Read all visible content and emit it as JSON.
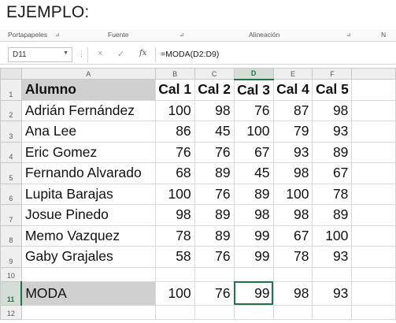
{
  "heading": "EJEMPLO:",
  "ribbon": {
    "groups": [
      "Portapapeles",
      "Fuente",
      "Alineación",
      "N"
    ]
  },
  "formula_bar": {
    "name_box": "D11",
    "cancel_icon": "×",
    "enter_icon": "✓",
    "fx_label": "fx",
    "formula": "=MODA(D2:D9)"
  },
  "columns": [
    "A",
    "B",
    "C",
    "D",
    "E",
    "F"
  ],
  "selected_column": "D",
  "rows": [
    "1",
    "2",
    "3",
    "4",
    "5",
    "6",
    "7",
    "8",
    "9",
    "10",
    "11",
    "12"
  ],
  "selected_row": "11",
  "header_row": [
    "Alumno",
    "Cal 1",
    "Cal 2",
    "Cal 3",
    "Cal 4",
    "Cal 5"
  ],
  "students": [
    {
      "name": "Adrián Fernández",
      "grades": [
        "100",
        "98",
        "76",
        "87",
        "98"
      ]
    },
    {
      "name": "Ana Lee",
      "grades": [
        "86",
        "45",
        "100",
        "79",
        "93"
      ]
    },
    {
      "name": "Eric Gomez",
      "grades": [
        "76",
        "76",
        "67",
        "93",
        "89"
      ]
    },
    {
      "name": "Fernando Alvarado",
      "grades": [
        "68",
        "89",
        "45",
        "98",
        "67"
      ]
    },
    {
      "name": "Lupita Barajas",
      "grades": [
        "100",
        "76",
        "89",
        "100",
        "78"
      ]
    },
    {
      "name": "Josue Pinedo",
      "grades": [
        "98",
        "89",
        "98",
        "98",
        "89"
      ]
    },
    {
      "name": "Memo Vazquez",
      "grades": [
        "78",
        "89",
        "99",
        "67",
        "100"
      ]
    },
    {
      "name": "Gaby Grajales",
      "grades": [
        "58",
        "76",
        "99",
        "78",
        "93"
      ]
    }
  ],
  "mode_row": {
    "label": "MODA",
    "values": [
      "100",
      "76",
      "99",
      "98",
      "93"
    ]
  },
  "colors": {
    "accent": "#217346",
    "label_fill": "#d0d0d0"
  }
}
